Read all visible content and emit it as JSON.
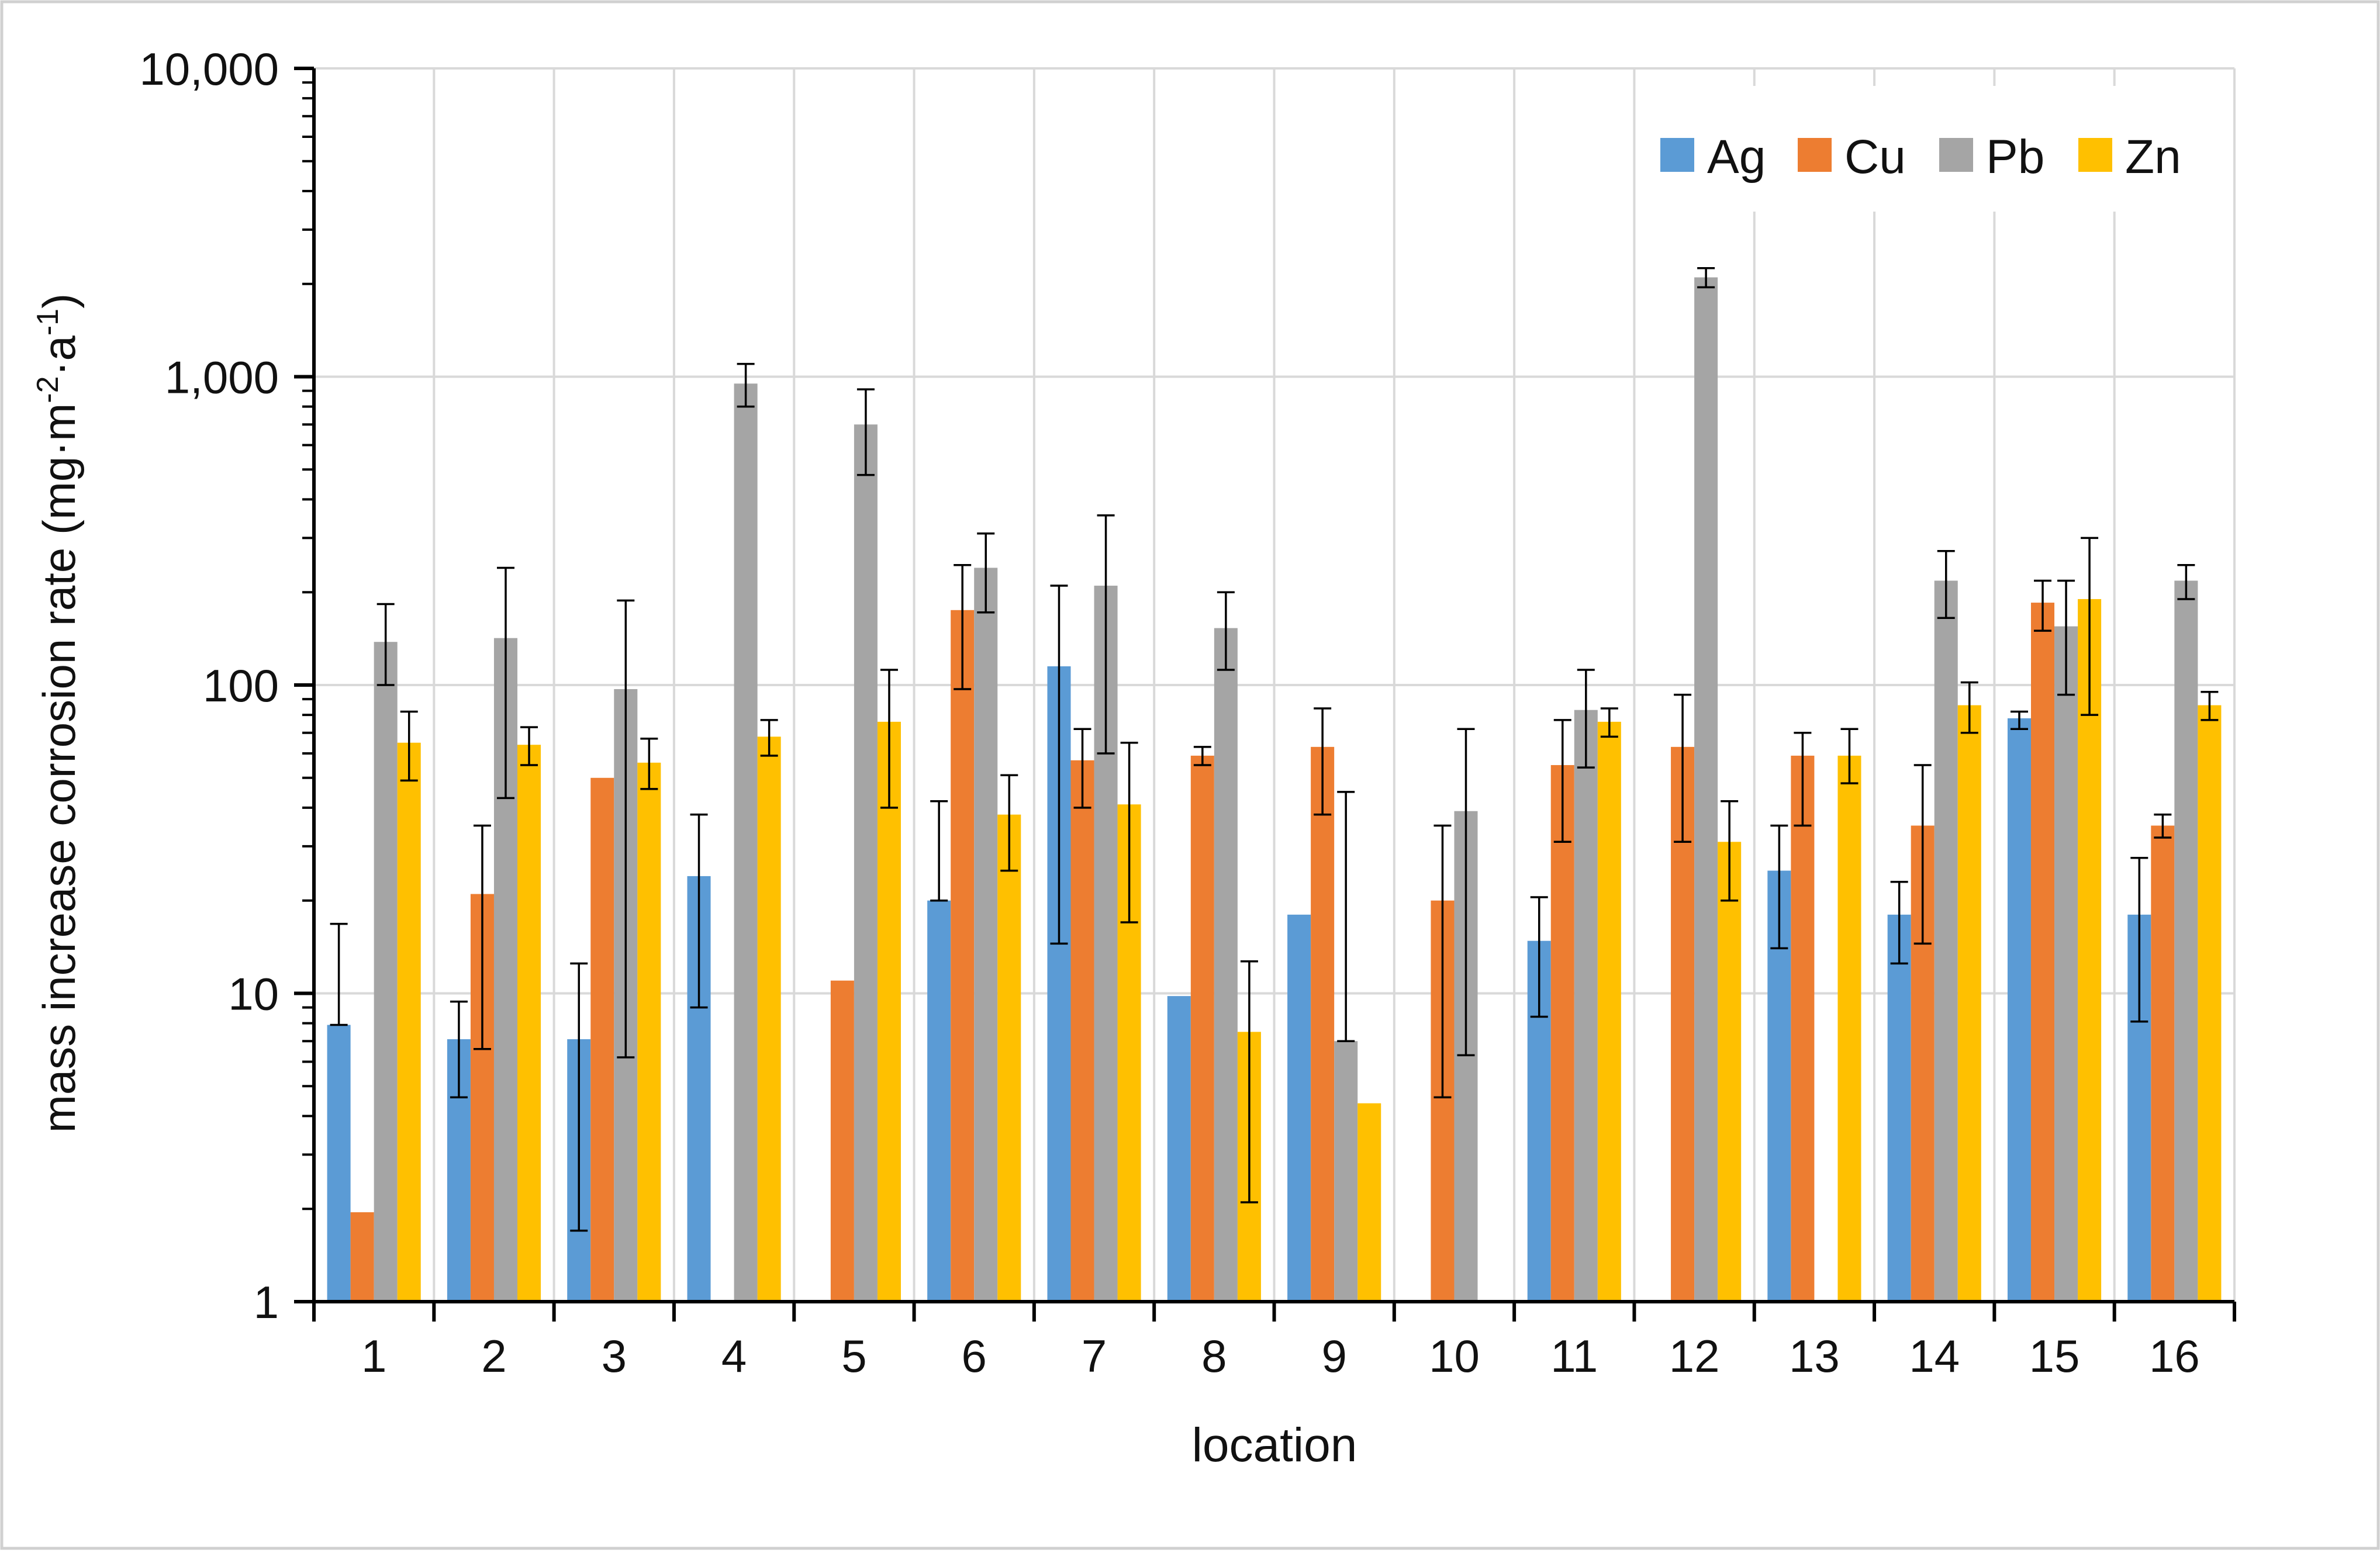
{
  "chart_data": {
    "type": "bar",
    "title": "",
    "xlabel": "location",
    "ylabel": "mass increase corrosion rate (mg·m",
    "ylabel_sup1": "-2",
    "ylabel_mid": "·a",
    "ylabel_sup2": "-1",
    "ylabel_end": ")",
    "yscale": "log",
    "ylim": [
      1,
      10000
    ],
    "y_ticks": [
      1,
      10,
      100,
      1000,
      10000
    ],
    "y_tick_labels": [
      "1",
      "10",
      "100",
      "1,000",
      "10,000"
    ],
    "categories": [
      "1",
      "2",
      "3",
      "4",
      "5",
      "6",
      "7",
      "8",
      "9",
      "10",
      "11",
      "12",
      "13",
      "14",
      "15",
      "16"
    ],
    "grid": true,
    "legend_position": "top-right",
    "series": [
      {
        "name": "Ag",
        "color": "#5B9BD5",
        "values": [
          7.9,
          7.1,
          7.1,
          24,
          null,
          20,
          115,
          9.8,
          18,
          null,
          14.8,
          null,
          25,
          18,
          78,
          18
        ],
        "err_low": [
          7.9,
          4.6,
          1.7,
          9,
          null,
          20,
          14.5,
          9.8,
          18,
          null,
          8.4,
          null,
          14,
          12.5,
          72,
          8.1
        ],
        "err_high": [
          16.8,
          9.4,
          12.5,
          38,
          null,
          42,
          210,
          9.8,
          18,
          null,
          20.5,
          null,
          35,
          23,
          82,
          27.5
        ]
      },
      {
        "name": "Cu",
        "color": "#ED7D31",
        "values": [
          1.95,
          21,
          50,
          null,
          11,
          175,
          57,
          59,
          63,
          20,
          55,
          63,
          59,
          35,
          185,
          35
        ],
        "err_low": [
          1.95,
          6.6,
          50,
          null,
          11,
          97,
          40,
          55,
          38,
          4.6,
          31,
          31,
          35,
          14.5,
          150,
          32
        ],
        "err_high": [
          1.95,
          35,
          50,
          null,
          11,
          245,
          72,
          63,
          84,
          35,
          77,
          93,
          70,
          55,
          218,
          38
        ]
      },
      {
        "name": "Pb",
        "color": "#A5A5A5",
        "values": [
          138,
          142,
          97,
          950,
          700,
          240,
          210,
          153,
          7,
          39,
          83,
          2100,
          null,
          218,
          155,
          218
        ],
        "err_low": [
          100,
          43,
          6.2,
          800,
          480,
          172,
          60,
          112,
          7,
          6.3,
          54,
          1950,
          null,
          165,
          93,
          190
        ],
        "err_high": [
          183,
          240,
          188,
          1100,
          910,
          310,
          355,
          200,
          45,
          72,
          112,
          2250,
          null,
          272,
          218,
          245
        ]
      },
      {
        "name": "Zn",
        "color": "#FFC000",
        "values": [
          65,
          64,
          56,
          68,
          76,
          38,
          41,
          7.5,
          4.4,
          null,
          76,
          31,
          59,
          86,
          190,
          86
        ],
        "err_low": [
          49,
          55,
          46,
          59,
          40,
          25,
          17,
          2.1,
          4.4,
          null,
          68,
          20,
          48,
          70,
          80,
          77
        ],
        "err_high": [
          82,
          73,
          67,
          77,
          112,
          51,
          65,
          12.7,
          4.4,
          null,
          84,
          42,
          72,
          102,
          300,
          95
        ]
      }
    ]
  }
}
